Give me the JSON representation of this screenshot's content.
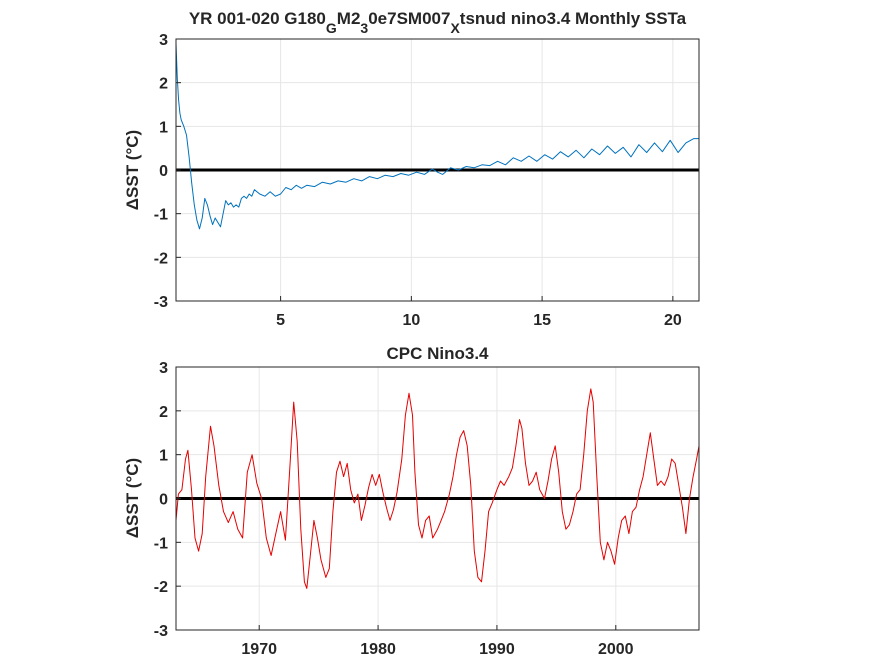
{
  "chart_data": [
    {
      "type": "line",
      "title_parts": {
        "a": "YR 001-020 G180",
        "sub1": "G",
        "b": "M2",
        "sub2": "3",
        "c": "0e7SM007",
        "sub3": "X",
        "d": "tsnud nino3.4 Monthly SSTa"
      },
      "ylabel": "ΔSST (°C)",
      "xlim": [
        1,
        21
      ],
      "ylim": [
        -3,
        3
      ],
      "xticks": [
        "5",
        "10",
        "15",
        "20"
      ],
      "yticks": [
        "3",
        "2",
        "1",
        "0",
        "-1",
        "-2",
        "-3"
      ],
      "grid": true,
      "zero_line": true,
      "series": [
        {
          "color": "#0072bd",
          "x": [
            1.0,
            1.05,
            1.1,
            1.15,
            1.2,
            1.3,
            1.4,
            1.5,
            1.6,
            1.7,
            1.8,
            1.9,
            2.0,
            2.1,
            2.2,
            2.3,
            2.4,
            2.5,
            2.6,
            2.7,
            2.8,
            2.9,
            3.0,
            3.1,
            3.2,
            3.3,
            3.4,
            3.5,
            3.6,
            3.7,
            3.8,
            3.9,
            4.0,
            4.2,
            4.4,
            4.6,
            4.8,
            5.0,
            5.2,
            5.4,
            5.6,
            5.8,
            6.0,
            6.3,
            6.6,
            6.9,
            7.2,
            7.5,
            7.8,
            8.1,
            8.4,
            8.7,
            9.0,
            9.3,
            9.6,
            9.9,
            10.2,
            10.5,
            10.8,
            11.0,
            11.2,
            11.5,
            11.8,
            12.1,
            12.4,
            12.7,
            13.0,
            13.3,
            13.6,
            13.9,
            14.2,
            14.5,
            14.8,
            15.1,
            15.4,
            15.7,
            16.0,
            16.3,
            16.6,
            16.9,
            17.2,
            17.5,
            17.8,
            18.1,
            18.4,
            18.7,
            19.0,
            19.3,
            19.6,
            19.9,
            20.2,
            20.5,
            20.8,
            21.0
          ],
          "y": [
            2.9,
            2.1,
            1.6,
            1.3,
            1.15,
            1.0,
            0.8,
            0.3,
            -0.3,
            -0.8,
            -1.15,
            -1.35,
            -1.1,
            -0.65,
            -0.8,
            -1.05,
            -1.25,
            -1.1,
            -1.2,
            -1.3,
            -1.0,
            -0.7,
            -0.8,
            -0.75,
            -0.85,
            -0.8,
            -0.85,
            -0.65,
            -0.6,
            -0.65,
            -0.55,
            -0.6,
            -0.45,
            -0.55,
            -0.6,
            -0.5,
            -0.6,
            -0.55,
            -0.4,
            -0.45,
            -0.35,
            -0.42,
            -0.35,
            -0.38,
            -0.28,
            -0.32,
            -0.25,
            -0.28,
            -0.2,
            -0.25,
            -0.15,
            -0.2,
            -0.12,
            -0.15,
            -0.08,
            -0.12,
            -0.05,
            -0.1,
            0.02,
            -0.05,
            -0.1,
            0.05,
            0.0,
            0.08,
            0.05,
            0.12,
            0.1,
            0.2,
            0.12,
            0.28,
            0.2,
            0.32,
            0.2,
            0.35,
            0.25,
            0.42,
            0.3,
            0.45,
            0.28,
            0.48,
            0.35,
            0.55,
            0.38,
            0.52,
            0.3,
            0.58,
            0.4,
            0.62,
            0.42,
            0.68,
            0.4,
            0.62,
            0.72,
            0.72
          ]
        }
      ]
    },
    {
      "type": "line",
      "title": "CPC Nino3.4",
      "ylabel": "ΔSST (°C)",
      "xlim": [
        1963,
        2007
      ],
      "ylim": [
        -3,
        3
      ],
      "xticks": [
        "1970",
        "1980",
        "1990",
        "2000"
      ],
      "yticks": [
        "3",
        "2",
        "1",
        "0",
        "-1",
        "-2",
        "-3"
      ],
      "grid": true,
      "zero_line": true,
      "series": [
        {
          "color": "#e60000",
          "x": [
            1963.0,
            1963.2,
            1963.5,
            1963.8,
            1964.0,
            1964.3,
            1964.6,
            1964.9,
            1965.2,
            1965.5,
            1965.9,
            1966.2,
            1966.6,
            1967.0,
            1967.4,
            1967.8,
            1968.2,
            1968.6,
            1969.0,
            1969.4,
            1969.8,
            1970.2,
            1970.6,
            1971.0,
            1971.4,
            1971.8,
            1972.2,
            1972.6,
            1972.9,
            1973.2,
            1973.5,
            1973.8,
            1974.0,
            1974.3,
            1974.6,
            1974.9,
            1975.2,
            1975.6,
            1975.9,
            1976.2,
            1976.5,
            1976.8,
            1977.1,
            1977.4,
            1977.7,
            1978.0,
            1978.3,
            1978.6,
            1978.9,
            1979.2,
            1979.5,
            1979.8,
            1980.1,
            1980.4,
            1980.7,
            1981.0,
            1981.3,
            1981.6,
            1982.0,
            1982.3,
            1982.6,
            1982.9,
            1983.1,
            1983.4,
            1983.7,
            1984.0,
            1984.3,
            1984.6,
            1985.0,
            1985.3,
            1985.6,
            1986.0,
            1986.3,
            1986.6,
            1986.9,
            1987.2,
            1987.5,
            1987.8,
            1988.1,
            1988.4,
            1988.7,
            1989.0,
            1989.3,
            1989.6,
            1990.0,
            1990.3,
            1990.6,
            1991.0,
            1991.3,
            1991.6,
            1991.9,
            1992.1,
            1992.4,
            1992.7,
            1993.0,
            1993.3,
            1993.6,
            1994.0,
            1994.3,
            1994.6,
            1994.9,
            1995.2,
            1995.5,
            1995.8,
            1996.1,
            1996.4,
            1996.7,
            1997.0,
            1997.3,
            1997.6,
            1997.9,
            1998.1,
            1998.4,
            1998.7,
            1999.0,
            1999.3,
            1999.6,
            1999.9,
            2000.2,
            2000.5,
            2000.8,
            2001.1,
            2001.4,
            2001.7,
            2002.0,
            2002.3,
            2002.6,
            2002.9,
            2003.2,
            2003.5,
            2003.8,
            2004.1,
            2004.4,
            2004.7,
            2005.0,
            2005.3,
            2005.6,
            2005.9,
            2006.2,
            2006.5,
            2006.8,
            2007.0
          ],
          "y": [
            -0.5,
            0.1,
            0.2,
            0.9,
            1.1,
            0.2,
            -0.9,
            -1.2,
            -0.8,
            0.5,
            1.65,
            1.2,
            0.3,
            -0.3,
            -0.55,
            -0.3,
            -0.7,
            -0.9,
            0.6,
            1.0,
            0.35,
            0.0,
            -0.9,
            -1.3,
            -0.8,
            -0.3,
            -0.95,
            0.8,
            2.2,
            1.3,
            -0.7,
            -1.9,
            -2.05,
            -1.3,
            -0.5,
            -0.9,
            -1.4,
            -1.8,
            -1.6,
            -0.3,
            0.6,
            0.85,
            0.5,
            0.8,
            0.2,
            -0.1,
            0.1,
            -0.5,
            -0.15,
            0.25,
            0.55,
            0.3,
            0.55,
            0.15,
            -0.2,
            -0.5,
            -0.25,
            0.15,
            0.9,
            1.9,
            2.4,
            1.9,
            0.6,
            -0.6,
            -0.9,
            -0.5,
            -0.4,
            -0.9,
            -0.7,
            -0.5,
            -0.3,
            0.1,
            0.5,
            1.0,
            1.4,
            1.55,
            1.2,
            0.3,
            -1.2,
            -1.8,
            -1.9,
            -1.2,
            -0.3,
            -0.1,
            0.2,
            0.4,
            0.3,
            0.5,
            0.7,
            1.2,
            1.8,
            1.6,
            0.8,
            0.3,
            0.4,
            0.6,
            0.2,
            0.0,
            0.4,
            0.9,
            1.2,
            0.6,
            -0.3,
            -0.7,
            -0.6,
            -0.3,
            0.1,
            0.2,
            1.0,
            2.0,
            2.5,
            2.2,
            0.5,
            -1.0,
            -1.4,
            -1.0,
            -1.2,
            -1.5,
            -0.9,
            -0.5,
            -0.4,
            -0.8,
            -0.3,
            -0.2,
            0.2,
            0.5,
            1.0,
            1.5,
            0.9,
            0.3,
            0.4,
            0.3,
            0.5,
            0.9,
            0.8,
            0.3,
            -0.2,
            -0.8,
            0.0,
            0.5,
            0.9,
            1.2
          ]
        }
      ]
    }
  ]
}
